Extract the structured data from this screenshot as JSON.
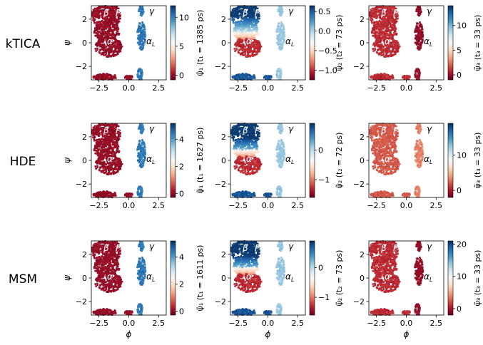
{
  "rows": [
    "kTICA",
    "HDE",
    "MSM"
  ],
  "axes": {
    "xlabel": "ϕ",
    "ylabel": "ψ",
    "xticks": [
      "−2.5",
      "0.0",
      "2.5"
    ],
    "yticks": [
      "2",
      "0",
      "−2"
    ],
    "xlim": [
      -3.14,
      3.14
    ],
    "ylim": [
      -3.14,
      3.14
    ]
  },
  "regions": {
    "beta": "β",
    "ppii": "P",
    "ppii_sub": "II",
    "gamma": "γ",
    "alpha": "α",
    "alphaL": "α",
    "alphaL_sub": "L"
  },
  "panels": [
    {
      "row": 0,
      "col": 0,
      "cbar_label": "ψ̃₁ (t₁ = 1385 ps)",
      "cbar_ticks": [
        "10",
        "5",
        "0"
      ],
      "cbar_tick_values": [
        10,
        5,
        0
      ],
      "vmin": -0.8,
      "vmax": 12
    },
    {
      "row": 0,
      "col": 1,
      "cbar_label": "ψ̃₂ (t₂ = 73 ps)",
      "cbar_ticks": [
        "0.5",
        "0.0",
        "−0.5",
        "−1.0"
      ],
      "cbar_tick_values": [
        0.5,
        0.0,
        -0.5,
        -1.0
      ],
      "vmin": -1.25,
      "vmax": 0.65
    },
    {
      "row": 0,
      "col": 2,
      "cbar_label": "ψ̃₃ (t₃ = 33 ps)",
      "cbar_ticks": [
        "10",
        "5",
        "0"
      ],
      "cbar_tick_values": [
        10,
        5,
        0
      ],
      "vmin": -1,
      "vmax": 14
    },
    {
      "row": 1,
      "col": 0,
      "cbar_label": "ψ̃₁ (t₁ = 1627 ps)",
      "cbar_ticks": [
        "4",
        "2",
        "0"
      ],
      "cbar_tick_values": [
        4,
        2,
        0
      ],
      "vmin": -0.3,
      "vmax": 5.2
    },
    {
      "row": 1,
      "col": 1,
      "cbar_label": "ψ̃₂ (t₂ = 72 ps)",
      "cbar_ticks": [
        "0",
        "−1"
      ],
      "cbar_tick_values": [
        0,
        -1
      ],
      "vmin": -1.6,
      "vmax": 0.9
    },
    {
      "row": 1,
      "col": 2,
      "cbar_label": "ψ̃₃ (t₃ = 33 ps)",
      "cbar_ticks": [
        "10",
        "0"
      ],
      "cbar_tick_values": [
        10,
        0
      ],
      "vmin": -2,
      "vmax": 19
    },
    {
      "row": 2,
      "col": 0,
      "cbar_label": "ψ̃₁ (t₁ = 1611 ps)",
      "cbar_ticks": [
        "4",
        "2",
        "0"
      ],
      "cbar_tick_values": [
        4,
        2,
        0
      ],
      "vmin": -0.3,
      "vmax": 5.2
    },
    {
      "row": 2,
      "col": 1,
      "cbar_label": "ψ̃₂ (t₂ = 73 ps)",
      "cbar_ticks": [
        "0",
        "−1"
      ],
      "cbar_tick_values": [
        0,
        -1
      ],
      "vmin": -1.6,
      "vmax": 0.9
    },
    {
      "row": 2,
      "col": 2,
      "cbar_label": "ψ̃₃ (t₃ = 33 ps)",
      "cbar_ticks": [
        "20",
        "10",
        "0"
      ],
      "cbar_tick_values": [
        20,
        10,
        0
      ],
      "vmin": -2,
      "vmax": 21
    }
  ],
  "chart_data": {
    "type": "scatter",
    "colormap": "RdBu",
    "colormap_colors": [
      "#67001f",
      "#b2182b",
      "#d6604d",
      "#f4a582",
      "#fddbc7",
      "#f7f7f7",
      "#d1e5f0",
      "#92c5de",
      "#4393c3",
      "#2166ac",
      "#053061"
    ],
    "x_axis": "ϕ",
    "y_axis": "ψ",
    "xlim": [
      -3.14,
      3.14
    ],
    "ylim": [
      -3.14,
      3.14
    ],
    "grid": false
  }
}
